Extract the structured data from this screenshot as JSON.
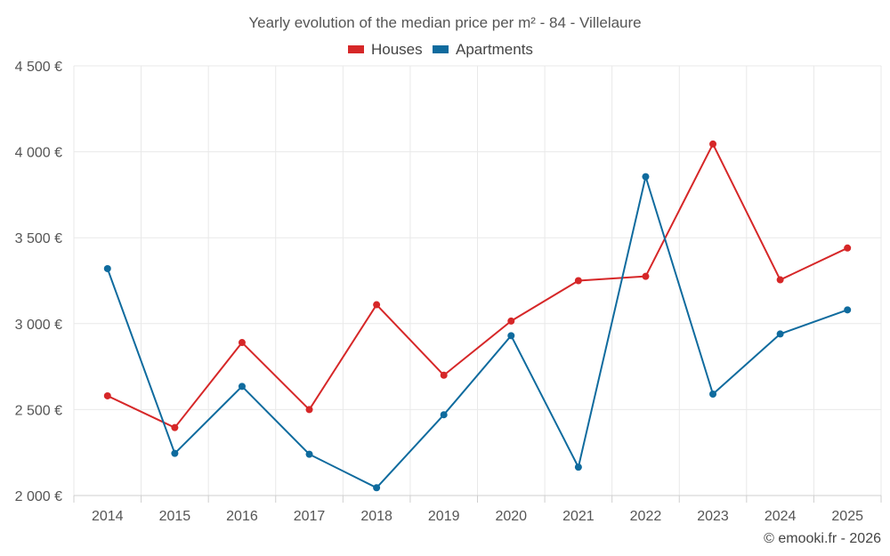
{
  "chart_data": {
    "type": "line",
    "title": "Yearly evolution of the median price per m² - 84 - Villelaure",
    "xlabel": "",
    "ylabel": "",
    "categories": [
      "2014",
      "2015",
      "2016",
      "2017",
      "2018",
      "2019",
      "2020",
      "2021",
      "2022",
      "2023",
      "2024",
      "2025"
    ],
    "ylim": [
      2000,
      4500
    ],
    "yticks": [
      2000,
      2500,
      3000,
      3500,
      4000,
      4500
    ],
    "ytick_labels": [
      "2 000 €",
      "2 500 €",
      "3 000 €",
      "3 500 €",
      "4 000 €",
      "4 500 €"
    ],
    "grid": true,
    "legend_position": "top-center",
    "series": [
      {
        "name": "Houses",
        "color": "#d62728",
        "values": [
          2580,
          2395,
          2890,
          2500,
          3110,
          2700,
          3015,
          3250,
          3275,
          4045,
          3255,
          3440
        ]
      },
      {
        "name": "Apartments",
        "color": "#0f6b9e",
        "values": [
          3320,
          2245,
          2635,
          2240,
          2045,
          2470,
          2930,
          2165,
          3855,
          2590,
          2940,
          3080
        ]
      }
    ]
  },
  "credit": "© emooki.fr - 2026"
}
